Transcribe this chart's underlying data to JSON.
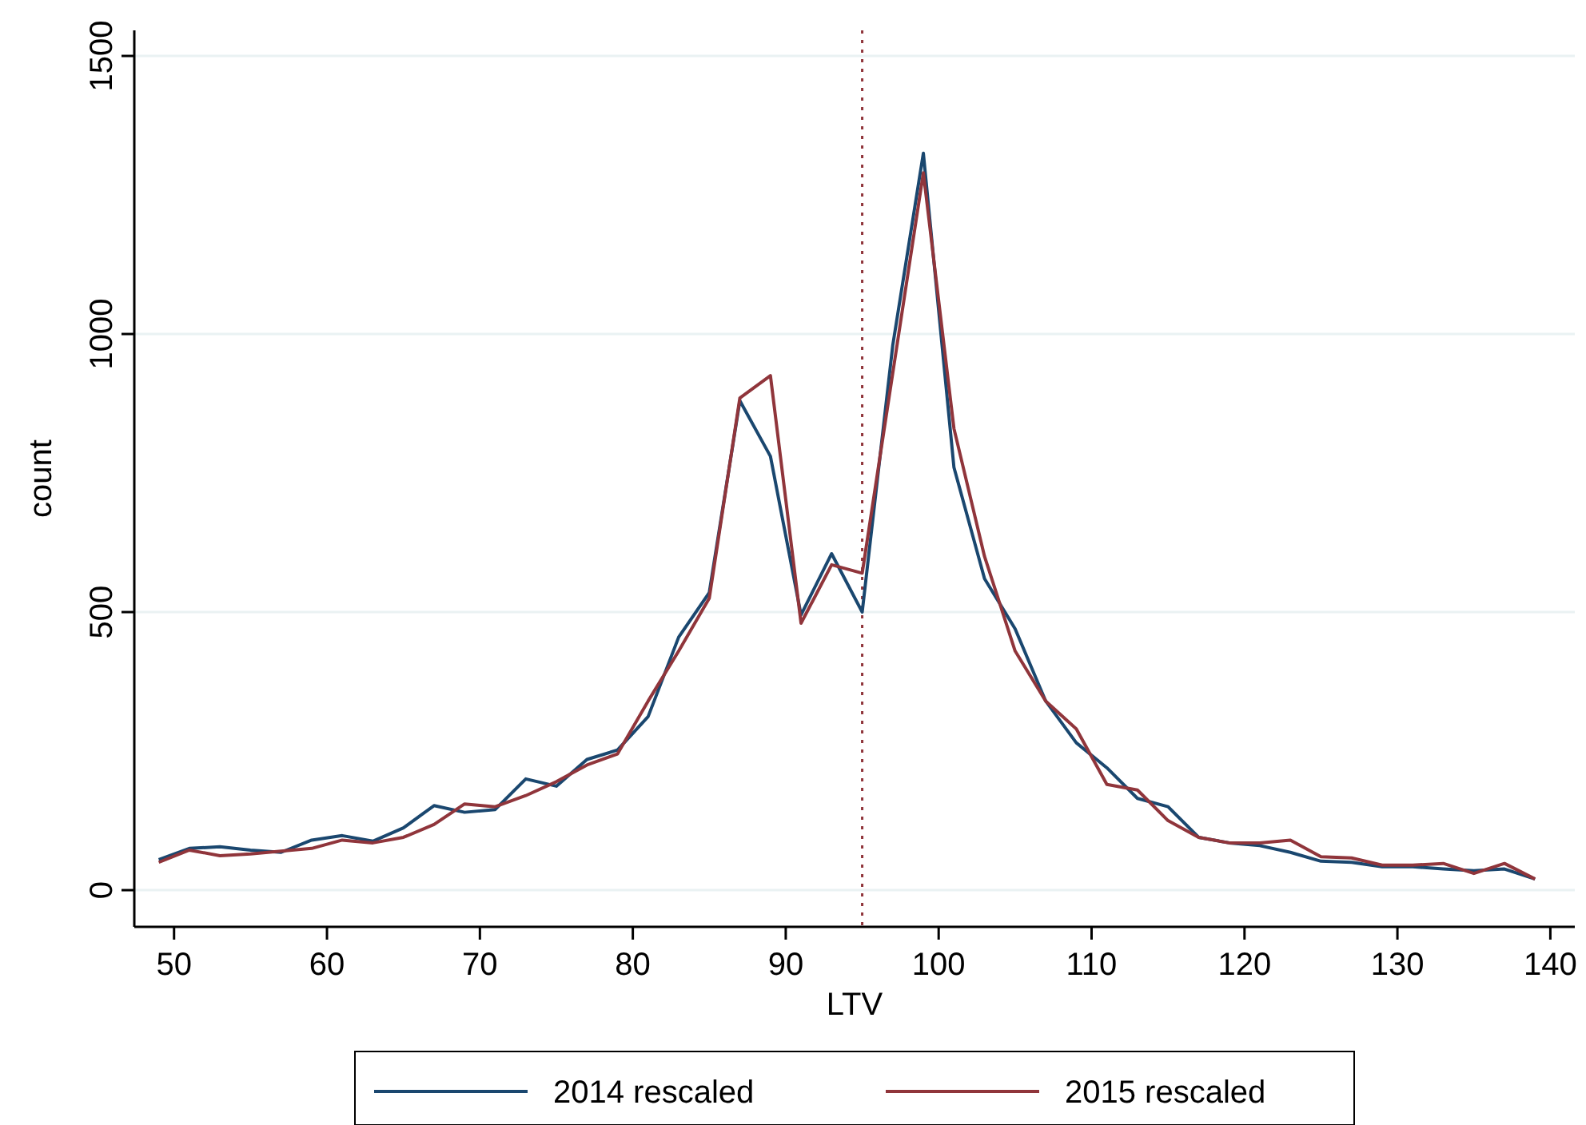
{
  "chart_data": {
    "type": "line",
    "xlabel": "LTV",
    "ylabel": "count",
    "x": [
      49,
      51,
      53,
      55,
      57,
      59,
      61,
      63,
      65,
      67,
      69,
      71,
      73,
      75,
      77,
      79,
      81,
      83,
      85,
      87,
      89,
      91,
      93,
      95,
      97,
      99,
      101,
      103,
      105,
      107,
      109,
      111,
      113,
      115,
      117,
      119,
      121,
      123,
      125,
      127,
      129,
      131,
      133,
      135,
      137,
      139
    ],
    "series": [
      {
        "name": "2014 rescaled",
        "color": "#1a476f",
        "values": [
          55,
          75,
          78,
          72,
          68,
          90,
          98,
          88,
          112,
          152,
          140,
          145,
          200,
          187,
          235,
          252,
          312,
          455,
          535,
          880,
          780,
          495,
          605,
          500,
          980,
          1325,
          760,
          560,
          470,
          340,
          265,
          220,
          165,
          150,
          95,
          85,
          80,
          68,
          52,
          50,
          42,
          42,
          38,
          35,
          38,
          20
        ]
      },
      {
        "name": "2015 rescaled",
        "color": "#90353b",
        "values": [
          50,
          72,
          62,
          65,
          70,
          75,
          90,
          85,
          95,
          118,
          155,
          150,
          170,
          195,
          225,
          245,
          340,
          430,
          525,
          885,
          925,
          480,
          585,
          570,
          930,
          1290,
          830,
          600,
          430,
          340,
          290,
          190,
          180,
          125,
          95,
          85,
          85,
          90,
          60,
          58,
          45,
          45,
          48,
          30,
          48,
          20
        ]
      }
    ],
    "xlim": [
      47.4,
      141.6
    ],
    "ylim": [
      -66,
      1546
    ],
    "xticks": [
      50,
      60,
      70,
      80,
      90,
      100,
      110,
      120,
      130,
      140
    ],
    "yticks": [
      0,
      500,
      1000,
      1500
    ],
    "grid": "y",
    "legend": "bottom",
    "line_style": "solid",
    "marker": "none",
    "ref_lines": [
      {
        "axis": "x",
        "value": 95,
        "color": "#90353b",
        "line_style": "dotted"
      }
    ]
  }
}
